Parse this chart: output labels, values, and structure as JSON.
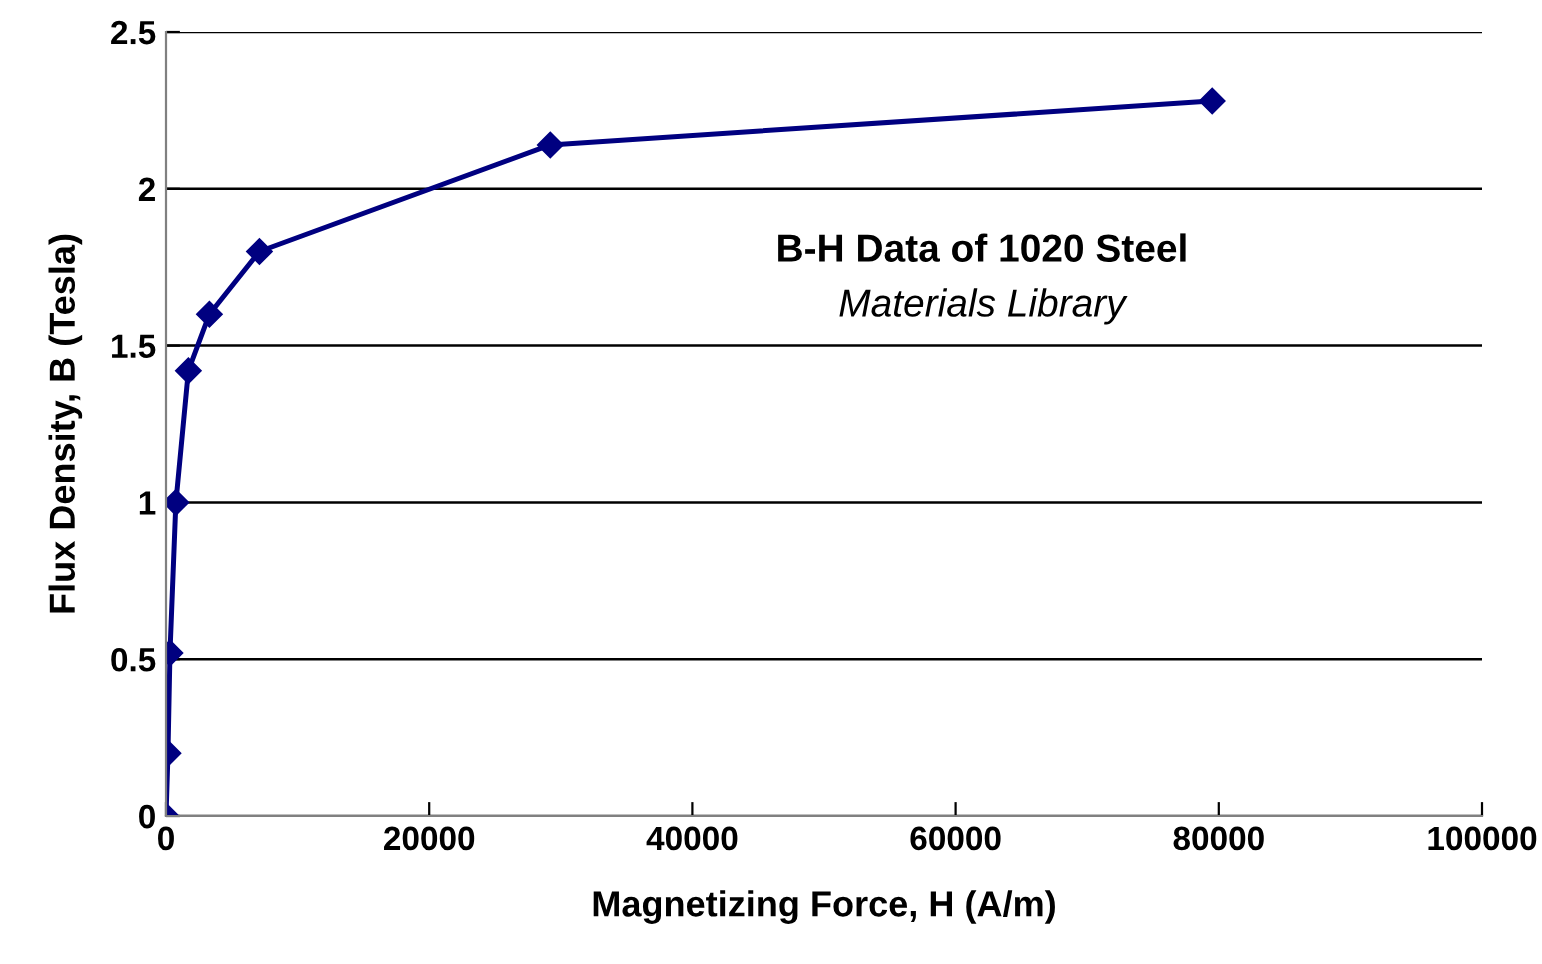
{
  "chart_data": {
    "type": "line",
    "xlabel": "Magnetizing Force, H (A/m)",
    "ylabel": "Flux Density, B (Tesla)",
    "annotations": [
      "B-H Data of 1020 Steel",
      "Materials Library"
    ],
    "x": [
      0,
      150,
      300,
      750,
      1700,
      3300,
      7100,
      29200,
      79500
    ],
    "series": [
      {
        "color": "#000080",
        "values": [
          0,
          0.2,
          0.52,
          1.0,
          1.42,
          1.6,
          1.8,
          2.14,
          2.28
        ]
      }
    ],
    "xlim": [
      0,
      100000
    ],
    "xticks": [
      0,
      20000,
      40000,
      60000,
      80000,
      100000
    ],
    "ylim": [
      0,
      2.5
    ],
    "yticks": [
      0,
      0.5,
      1,
      1.5,
      2,
      2.5
    ],
    "grid": "y",
    "marker": "diamond",
    "line_style": "solid",
    "legend": false
  }
}
